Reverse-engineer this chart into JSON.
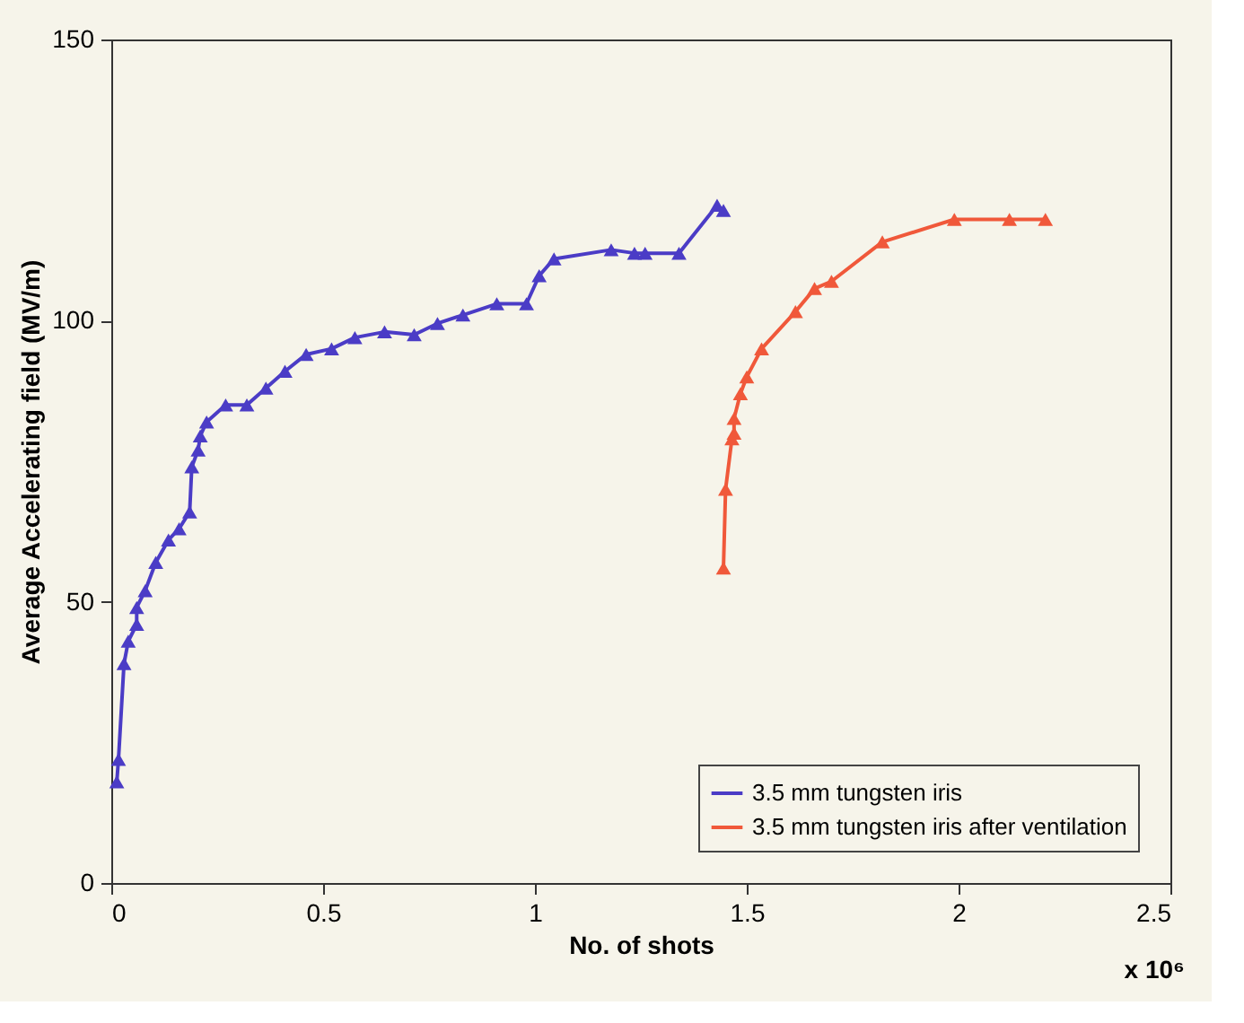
{
  "chart_data": {
    "type": "line",
    "xlabel": "No. of shots",
    "ylabel": "Average Accelerating field (MV/m)",
    "annotations": [
      "x 10⁶"
    ],
    "xlim": [
      0,
      2.5
    ],
    "xticks": [
      0,
      0.5,
      1,
      1.5,
      2,
      2.5
    ],
    "ylim": [
      0,
      150
    ],
    "yticks": [
      0,
      50,
      100,
      150
    ],
    "grid": false,
    "legend": "bottom right",
    "marker": "triangle",
    "line_style": "solid",
    "series": [
      {
        "name": "3.5 mm tungsten iris",
        "color": "#4b3cc6",
        "x": [
          0.013,
          0.017,
          0.03,
          0.04,
          0.06,
          0.06,
          0.08,
          0.105,
          0.135,
          0.16,
          0.185,
          0.19,
          0.205,
          0.21,
          0.225,
          0.27,
          0.32,
          0.365,
          0.41,
          0.46,
          0.52,
          0.575,
          0.645,
          0.715,
          0.77,
          0.83,
          0.91,
          0.98,
          1.01,
          1.045,
          1.18,
          1.235,
          1.26,
          1.34,
          1.43,
          1.445
        ],
        "values": [
          18,
          22,
          39,
          43,
          46,
          49,
          52,
          57,
          61,
          63,
          66,
          74,
          77,
          79.5,
          82,
          85,
          85,
          88,
          91,
          94,
          95,
          97,
          98,
          97.5,
          99.5,
          101,
          103,
          103,
          108,
          111,
          112.6,
          112,
          112,
          112,
          120.5,
          119.6
        ]
      },
      {
        "name": "3.5 mm tungsten iris after ventilation",
        "color": "#f0583a",
        "x": [
          1.445,
          1.45,
          1.465,
          1.47,
          1.47,
          1.485,
          1.5,
          1.535,
          1.615,
          1.66,
          1.7,
          1.82,
          1.99,
          2.12,
          2.205
        ],
        "values": [
          56,
          70,
          79,
          80,
          82.6,
          87,
          90,
          95,
          101.6,
          105.7,
          107,
          114,
          118,
          118,
          118
        ]
      }
    ]
  }
}
